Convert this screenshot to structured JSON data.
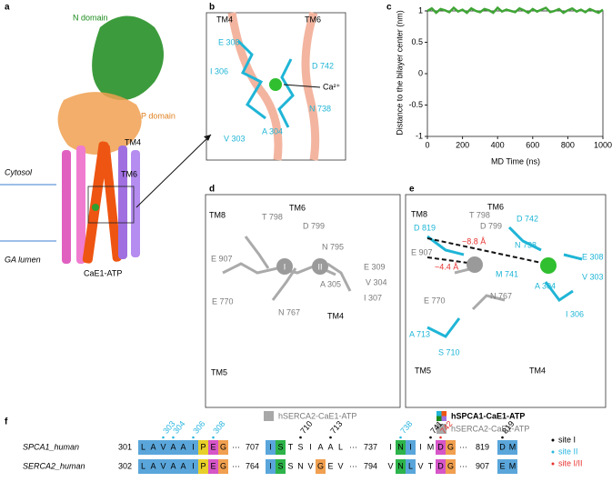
{
  "panel_a": {
    "letter": "a",
    "labels": {
      "n_domain": "N domain",
      "p_domain": "P domain",
      "tm4": "TM4",
      "tm6": "TM6",
      "cytosol": "Cytosol",
      "lumen": "GA lumen",
      "state": "CaE1-ATP"
    }
  },
  "panel_b": {
    "letter": "b",
    "labels": [
      "TM4",
      "TM6",
      "E 308",
      "I 306",
      "D 742",
      "Ca²⁺",
      "N 738",
      "A 304",
      "V 303"
    ]
  },
  "panel_c": {
    "letter": "c",
    "chart_data": {
      "type": "line",
      "x_label": "MD Time (ns)",
      "y_label": "Distance to the bilayer center (nm)",
      "xlim": [
        0,
        1000
      ],
      "xticks": [
        0,
        200,
        400,
        600,
        800,
        1000
      ],
      "ylim": [
        -1,
        1
      ],
      "yticks": [
        -1,
        -0.5,
        0,
        0.5,
        1
      ],
      "x": [
        0,
        25,
        50,
        75,
        100,
        125,
        150,
        175,
        200,
        225,
        250,
        275,
        300,
        325,
        350,
        375,
        400,
        425,
        450,
        475,
        500,
        525,
        550,
        575,
        600,
        625,
        650,
        675,
        700,
        725,
        750,
        775,
        800,
        825,
        850,
        875,
        900,
        925,
        950,
        975,
        1000
      ],
      "series": [
        {
          "color": "#3fa535",
          "values": [
            1.0,
            1.04,
            0.97,
            1.03,
            1.01,
            0.98,
            1.05,
            0.99,
            1.02,
            0.97,
            1.04,
            1.0,
            0.98,
            1.03,
            1.01,
            0.97,
            1.05,
            0.99,
            1.02,
            1.0,
            0.98,
            1.04,
            1.01,
            0.97,
            1.03,
            0.99,
            1.02,
            1.05,
            0.98,
            1.0,
            1.03,
            0.97,
            1.01,
            1.04,
            0.99,
            1.02,
            0.98,
            1.03,
            1.0,
            0.97,
            1.02
          ]
        }
      ]
    }
  },
  "panel_d": {
    "letter": "d",
    "labels": [
      "TM8",
      "T 798",
      "TM6",
      "D 799",
      "N 795",
      "E 907",
      "E 309",
      "V 304",
      "I 307",
      "A 305",
      "E 770",
      "N 767",
      "TM5",
      "TM4",
      "I",
      "II"
    ],
    "legend": "hSERCA2-CaE1-ATP"
  },
  "panel_e": {
    "letter": "e",
    "labels": [
      "TM8",
      "T 798",
      "TM6",
      "D 799",
      "D 742",
      "D 819",
      "N 738",
      "E 907",
      "~8.8 Å",
      "~4.4 Å",
      "M 741",
      "E 308",
      "V 303",
      "A 304",
      "E 770",
      "N 767",
      "A 713",
      "S 710",
      "TM5",
      "TM4",
      "I 306"
    ],
    "legend": [
      "hSPCA1-CaE1-ATP",
      "hSERCA2-CaE1-ATP"
    ]
  },
  "panel_f": {
    "letter": "f",
    "separator": "···",
    "rows": [
      {
        "name": "SPCA1_human",
        "blocks": [
          {
            "start": 301,
            "residues": "LAVAAIPEG"
          },
          {
            "start": 707,
            "residues": "ISTSIAAL"
          },
          {
            "start": 737,
            "residues": "INIIMDG"
          },
          {
            "start": 819,
            "residues": "DM"
          }
        ]
      },
      {
        "name": "SERCA2_human",
        "blocks": [
          {
            "start": 302,
            "residues": "LAVAAIPEG"
          },
          {
            "start": 764,
            "residues": "ISSNVGEV"
          },
          {
            "start": 794,
            "residues": "VNLVTDG"
          },
          {
            "start": 907,
            "residues": "EM"
          }
        ]
      }
    ],
    "sites": [
      {
        "name": "site I",
        "color": "#000000"
      },
      {
        "name": "site II",
        "color": "#29b6e0"
      },
      {
        "name": "site I/II",
        "color": "#e8322f"
      }
    ],
    "marks": [
      {
        "number": 303,
        "site": 1
      },
      {
        "number": 304,
        "site": 1
      },
      {
        "number": 306,
        "site": 1
      },
      {
        "number": 308,
        "site": 1
      },
      {
        "number": 710,
        "site": 0
      },
      {
        "number": 713,
        "site": 0
      },
      {
        "number": 738,
        "site": 1
      },
      {
        "number": 741,
        "site": 0
      },
      {
        "number": 742,
        "site": 2
      },
      {
        "number": 819,
        "site": 0
      }
    ]
  }
}
